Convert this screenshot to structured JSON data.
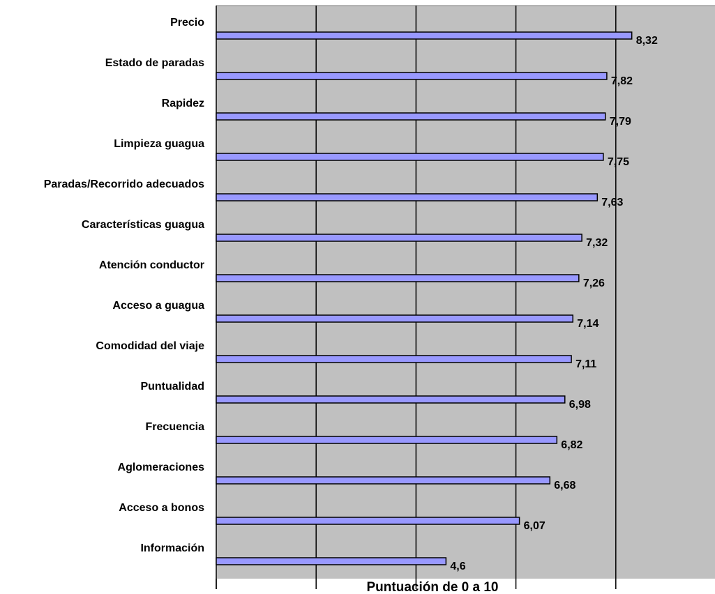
{
  "chart_data": {
    "type": "bar",
    "orientation": "horizontal",
    "categories": [
      "Precio",
      "Estado de paradas",
      "Rapidez",
      "Limpieza guagua",
      "Paradas/Recorrido adecuados",
      "Características guagua",
      "Atención conductor",
      "Acceso a guagua",
      "Comodidad del viaje",
      "Puntualidad",
      "Frecuencia",
      "Aglomeraciones",
      "Acceso a bonos",
      "Información"
    ],
    "values": [
      8.32,
      7.82,
      7.79,
      7.75,
      7.63,
      7.32,
      7.26,
      7.14,
      7.11,
      6.98,
      6.82,
      6.68,
      6.07,
      4.6
    ],
    "value_labels": [
      "8,32",
      "7,82",
      "7,79",
      "7,75",
      "7,63",
      "7,32",
      "7,26",
      "7,14",
      "7,11",
      "6,98",
      "6,82",
      "6,68",
      "6,07",
      "4,6"
    ],
    "xlabel": "Puntuación de 0 a 10",
    "ylabel": "",
    "xlim": [
      0,
      10
    ],
    "x_gridlines": [
      2,
      4,
      6,
      8
    ],
    "grid": true,
    "legend": "none",
    "colors": {
      "plot_background": "#c0c0c0",
      "bar_fill": "#9999ff",
      "bar_stroke": "#000000",
      "gridline": "#000000"
    }
  }
}
